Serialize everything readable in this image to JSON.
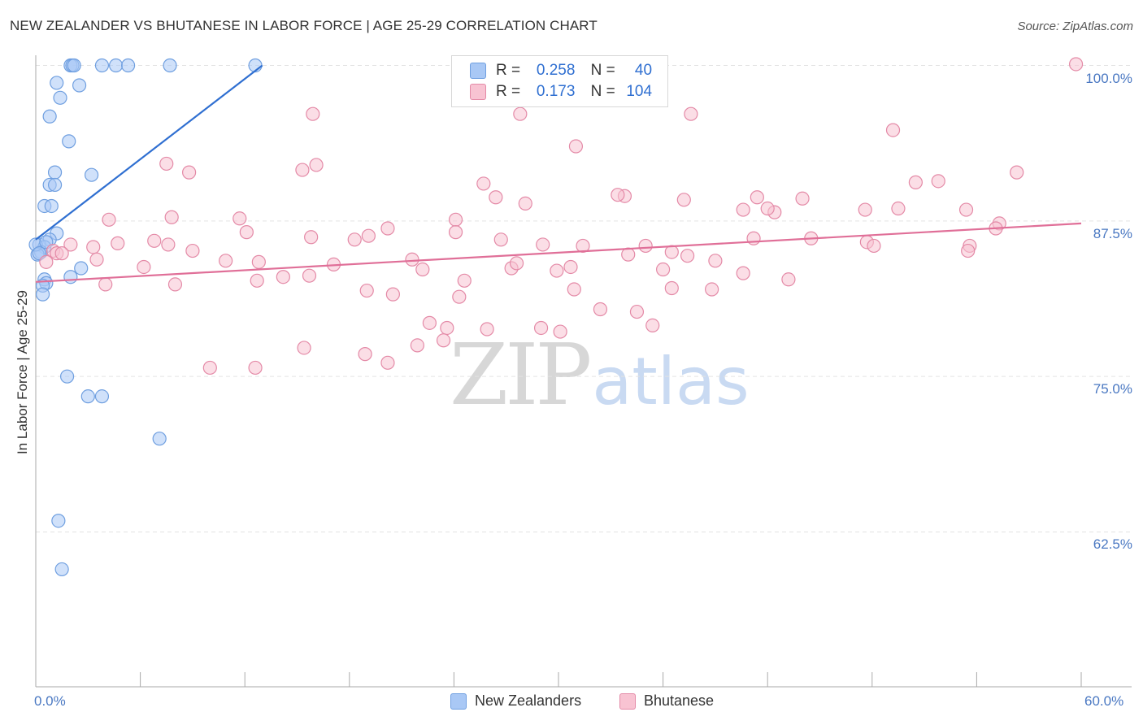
{
  "title": "NEW ZEALANDER VS BHUTANESE IN LABOR FORCE | AGE 25-29 CORRELATION CHART",
  "source": "Source: ZipAtlas.com",
  "watermark": {
    "zip": "ZIP",
    "atlas": "atlas"
  },
  "legend": {
    "r_label": "R =",
    "n_label": "N =",
    "rows": [
      {
        "r": "0.258",
        "n": "40",
        "color": "#a9c8f5",
        "border": "#6f9fe0"
      },
      {
        "r": "0.173",
        "n": "104",
        "color": "#f8c3d2",
        "border": "#e48aa7"
      }
    ]
  },
  "series_legend": [
    "New Zealanders",
    "Bhutanese"
  ],
  "colors": {
    "blue_fill": "#a9c8f5",
    "blue_stroke": "#6f9fe0",
    "blue_line": "#2f6fd1",
    "pink_fill": "#f8c3d2",
    "pink_stroke": "#e48aa7",
    "pink_line": "#e06f98",
    "tick_label": "#4a78c2",
    "grid": "#e3e3e3"
  },
  "chart_data": {
    "type": "scatter",
    "title": "NEW ZEALANDER VS BHUTANESE IN LABOR FORCE | AGE 25-29 CORRELATION CHART",
    "xlabel": "",
    "ylabel": "In Labor Force | Age 25-29",
    "xlim": [
      0,
      60
    ],
    "ylim": [
      50,
      101.5
    ],
    "x_tick_labels": [
      {
        "value": 0,
        "label": "0.0%"
      },
      {
        "value": 60,
        "label": "60.0%"
      }
    ],
    "y_tick_labels": [
      {
        "value": 100,
        "label": "100.0%"
      },
      {
        "value": 87.5,
        "label": "87.5%"
      },
      {
        "value": 75,
        "label": "75.0%"
      },
      {
        "value": 62.5,
        "label": "62.5%"
      }
    ],
    "grid": true,
    "legend_position": "top-center",
    "series": [
      {
        "name": "New Zealanders",
        "r": 0.258,
        "n": 40,
        "trend": {
          "x": [
            0.0,
            13.0
          ],
          "y": [
            86.0,
            100.0
          ]
        },
        "points": [
          [
            2.0,
            100.0
          ],
          [
            2.1,
            100.0
          ],
          [
            2.2,
            100.0
          ],
          [
            3.8,
            100.0
          ],
          [
            4.6,
            100.0
          ],
          [
            5.3,
            100.0
          ],
          [
            7.7,
            100.0
          ],
          [
            12.6,
            100.0
          ],
          [
            1.2,
            98.6
          ],
          [
            2.5,
            98.4
          ],
          [
            1.4,
            97.4
          ],
          [
            0.8,
            95.9
          ],
          [
            1.9,
            93.9
          ],
          [
            3.2,
            91.2
          ],
          [
            1.1,
            91.4
          ],
          [
            0.8,
            90.4
          ],
          [
            1.1,
            90.4
          ],
          [
            0.5,
            88.7
          ],
          [
            0.9,
            88.7
          ],
          [
            1.2,
            86.5
          ],
          [
            0.8,
            86.0
          ],
          [
            0.2,
            85.6
          ],
          [
            0.5,
            85.4
          ],
          [
            0.3,
            85.0
          ],
          [
            0.1,
            84.8
          ],
          [
            2.6,
            83.7
          ],
          [
            2.0,
            83.0
          ],
          [
            0.5,
            82.8
          ],
          [
            0.6,
            82.5
          ],
          [
            0.4,
            82.3
          ],
          [
            0.4,
            81.6
          ],
          [
            1.8,
            75.0
          ],
          [
            3.0,
            73.4
          ],
          [
            3.8,
            73.4
          ],
          [
            7.1,
            70.0
          ],
          [
            1.3,
            63.4
          ],
          [
            1.5,
            59.5
          ],
          [
            0.0,
            85.6
          ],
          [
            0.2,
            84.9
          ],
          [
            0.6,
            85.8
          ]
        ]
      },
      {
        "name": "Bhutanese",
        "r": 0.173,
        "n": 104,
        "trend": {
          "x": [
            0.0,
            60.0
          ],
          "y": [
            82.6,
            87.3
          ]
        },
        "points": [
          [
            59.7,
            100.1
          ],
          [
            15.9,
            96.1
          ],
          [
            27.8,
            96.1
          ],
          [
            37.6,
            96.1
          ],
          [
            49.2,
            94.8
          ],
          [
            31.0,
            93.5
          ],
          [
            7.5,
            92.1
          ],
          [
            16.1,
            92.0
          ],
          [
            8.8,
            91.4
          ],
          [
            15.3,
            91.6
          ],
          [
            51.8,
            90.7
          ],
          [
            56.3,
            91.4
          ],
          [
            50.5,
            90.6
          ],
          [
            25.7,
            90.5
          ],
          [
            26.4,
            89.4
          ],
          [
            33.8,
            89.5
          ],
          [
            33.4,
            89.6
          ],
          [
            44.0,
            89.3
          ],
          [
            41.4,
            89.4
          ],
          [
            37.2,
            89.2
          ],
          [
            28.1,
            88.9
          ],
          [
            24.1,
            87.6
          ],
          [
            40.6,
            88.4
          ],
          [
            42.4,
            88.2
          ],
          [
            42.0,
            88.5
          ],
          [
            47.6,
            88.4
          ],
          [
            49.5,
            88.5
          ],
          [
            53.4,
            88.4
          ],
          [
            55.3,
            87.3
          ],
          [
            4.2,
            87.6
          ],
          [
            7.8,
            87.8
          ],
          [
            11.7,
            87.7
          ],
          [
            19.1,
            86.3
          ],
          [
            20.2,
            86.9
          ],
          [
            18.3,
            86.0
          ],
          [
            15.8,
            86.2
          ],
          [
            12.1,
            86.6
          ],
          [
            24.1,
            86.6
          ],
          [
            26.7,
            86.0
          ],
          [
            41.2,
            86.1
          ],
          [
            44.5,
            86.1
          ],
          [
            47.7,
            85.8
          ],
          [
            48.1,
            85.5
          ],
          [
            53.6,
            85.5
          ],
          [
            53.5,
            85.1
          ],
          [
            55.1,
            86.9
          ],
          [
            29.1,
            85.6
          ],
          [
            31.4,
            85.5
          ],
          [
            35.0,
            85.5
          ],
          [
            34.0,
            84.8
          ],
          [
            36.5,
            85.0
          ],
          [
            37.4,
            84.7
          ],
          [
            9.0,
            85.1
          ],
          [
            6.8,
            85.9
          ],
          [
            7.6,
            85.6
          ],
          [
            4.7,
            85.7
          ],
          [
            3.3,
            85.4
          ],
          [
            2.0,
            85.6
          ],
          [
            1.0,
            85.1
          ],
          [
            0.6,
            84.2
          ],
          [
            1.2,
            84.9
          ],
          [
            1.5,
            84.9
          ],
          [
            3.5,
            84.4
          ],
          [
            6.2,
            83.8
          ],
          [
            10.9,
            84.3
          ],
          [
            12.8,
            84.2
          ],
          [
            17.1,
            84.0
          ],
          [
            21.6,
            84.4
          ],
          [
            22.2,
            83.6
          ],
          [
            27.3,
            83.7
          ],
          [
            27.6,
            84.1
          ],
          [
            29.9,
            83.5
          ],
          [
            30.7,
            83.8
          ],
          [
            36.0,
            83.6
          ],
          [
            39.0,
            84.3
          ],
          [
            40.6,
            83.3
          ],
          [
            43.2,
            82.8
          ],
          [
            14.2,
            83.0
          ],
          [
            15.7,
            83.1
          ],
          [
            24.6,
            82.7
          ],
          [
            30.9,
            82.0
          ],
          [
            36.5,
            82.1
          ],
          [
            38.8,
            82.0
          ],
          [
            4.0,
            82.4
          ],
          [
            8.0,
            82.4
          ],
          [
            12.7,
            82.7
          ],
          [
            19.0,
            81.9
          ],
          [
            20.5,
            81.6
          ],
          [
            24.3,
            81.4
          ],
          [
            32.4,
            80.4
          ],
          [
            35.4,
            79.1
          ],
          [
            34.5,
            80.2
          ],
          [
            22.6,
            79.3
          ],
          [
            23.6,
            78.9
          ],
          [
            25.9,
            78.8
          ],
          [
            29.0,
            78.9
          ],
          [
            30.1,
            78.6
          ],
          [
            23.4,
            77.9
          ],
          [
            21.9,
            77.5
          ],
          [
            15.4,
            77.3
          ],
          [
            18.9,
            76.8
          ],
          [
            20.2,
            76.1
          ],
          [
            10.0,
            75.7
          ],
          [
            12.6,
            75.7
          ]
        ]
      }
    ]
  }
}
